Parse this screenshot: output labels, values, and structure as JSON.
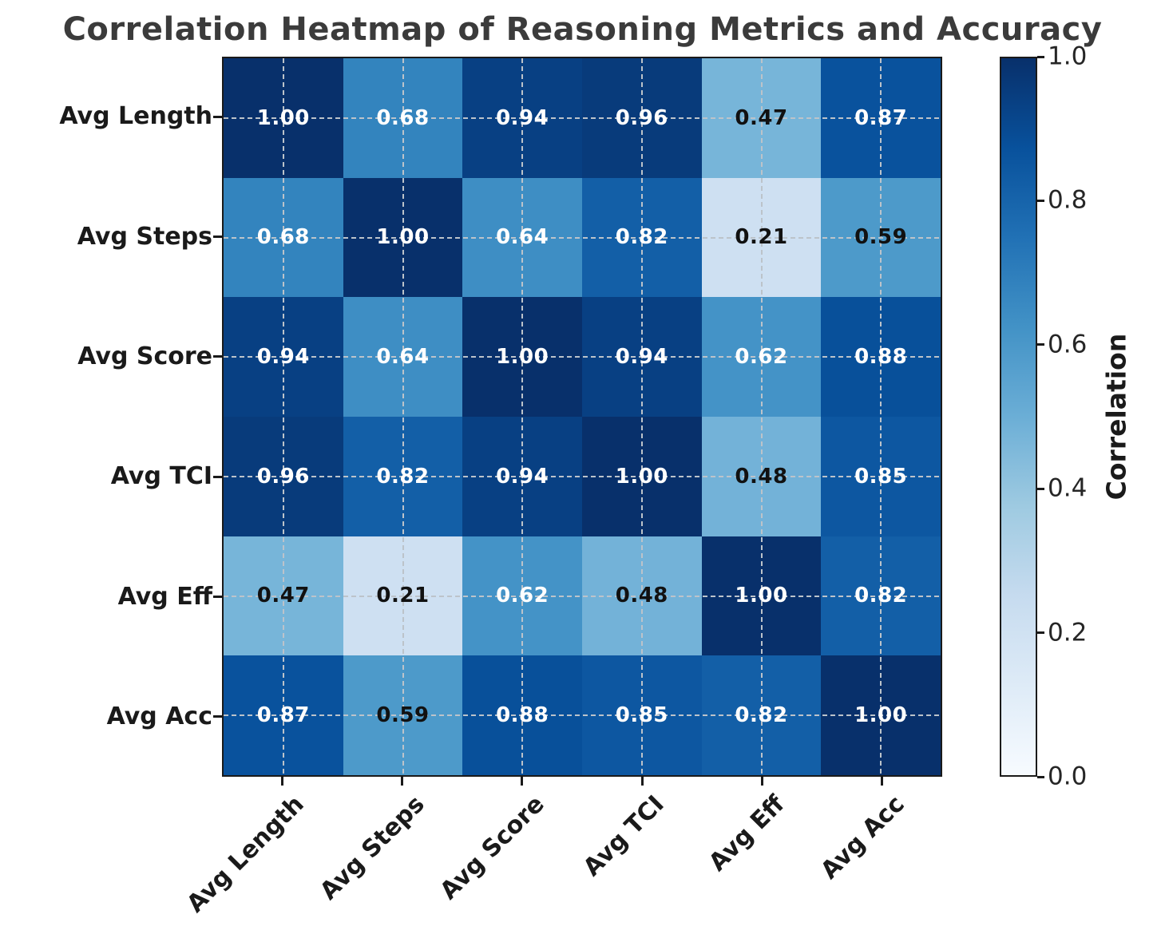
{
  "title": "Correlation Heatmap of Reasoning Metrics and Accuracy",
  "chart_data": {
    "type": "heatmap",
    "title": "Correlation Heatmap of Reasoning Metrics and Accuracy",
    "categories": [
      "Avg Length",
      "Avg Steps",
      "Avg Score",
      "Avg TCI",
      "Avg Eff",
      "Avg Acc"
    ],
    "matrix": [
      [
        1.0,
        0.68,
        0.94,
        0.96,
        0.47,
        0.87
      ],
      [
        0.68,
        1.0,
        0.64,
        0.82,
        0.21,
        0.59
      ],
      [
        0.94,
        0.64,
        1.0,
        0.94,
        0.62,
        0.88
      ],
      [
        0.96,
        0.82,
        0.94,
        1.0,
        0.48,
        0.85
      ],
      [
        0.47,
        0.21,
        0.62,
        0.48,
        1.0,
        0.82
      ],
      [
        0.87,
        0.59,
        0.88,
        0.85,
        0.82,
        1.0
      ]
    ],
    "cell_labels": [
      [
        "1.00",
        "0.68",
        "0.94",
        "0.96",
        "0.47",
        "0.87"
      ],
      [
        "0.68",
        "1.00",
        "0.64",
        "0.82",
        "0.21",
        "0.59"
      ],
      [
        "0.94",
        "0.64",
        "1.00",
        "0.94",
        "0.62",
        "0.88"
      ],
      [
        "0.96",
        "0.82",
        "0.94",
        "1.00",
        "0.48",
        "0.85"
      ],
      [
        "0.47",
        "0.21",
        "0.62",
        "0.48",
        "1.00",
        "0.82"
      ],
      [
        "0.87",
        "0.59",
        "0.88",
        "0.85",
        "0.82",
        "1.00"
      ]
    ],
    "cell_colors": [
      [
        "#08306b",
        "#3384be",
        "#084083",
        "#083b7b",
        "#77b5d9",
        "#09529d"
      ],
      [
        "#3384be",
        "#08306b",
        "#3e8ec4",
        "#135fa7",
        "#cee0f2",
        "#4d9aca"
      ],
      [
        "#084083",
        "#3e8ec4",
        "#08306b",
        "#084083",
        "#4493c7",
        "#08509a"
      ],
      [
        "#083b7b",
        "#135fa7",
        "#084083",
        "#08306b",
        "#73b2d8",
        "#0d57a1"
      ],
      [
        "#77b5d9",
        "#cee0f2",
        "#4493c7",
        "#73b2d8",
        "#08306b",
        "#135fa7"
      ],
      [
        "#09529d",
        "#4d9aca",
        "#08509a",
        "#0d57a1",
        "#135fa7",
        "#08306b"
      ]
    ],
    "text_color_threshold": 0.6,
    "annotation_color_light": "#ffffff",
    "annotation_color_dark": "#111111",
    "colormap": "Blues",
    "colormap_stops_top_to_bottom": [
      "#08306b",
      "#08519c",
      "#2171b5",
      "#4292c6",
      "#6baed6",
      "#9ecae1",
      "#c6dbef",
      "#deebf7",
      "#f7fbff"
    ],
    "grid": true,
    "colorbar": {
      "label": "Correlation",
      "ticks": [
        "1.0",
        "0.8",
        "0.6",
        "0.4",
        "0.2",
        "0.0"
      ],
      "range": [
        0.0,
        1.0
      ]
    }
  },
  "colors": {
    "title": "#3b3b3b",
    "axis_label": "#1a1a1a",
    "colorbar_tick_label": "#262626",
    "spine": "#1a1a1a",
    "gridline": "#bcc3ca",
    "background": "#ffffff"
  }
}
